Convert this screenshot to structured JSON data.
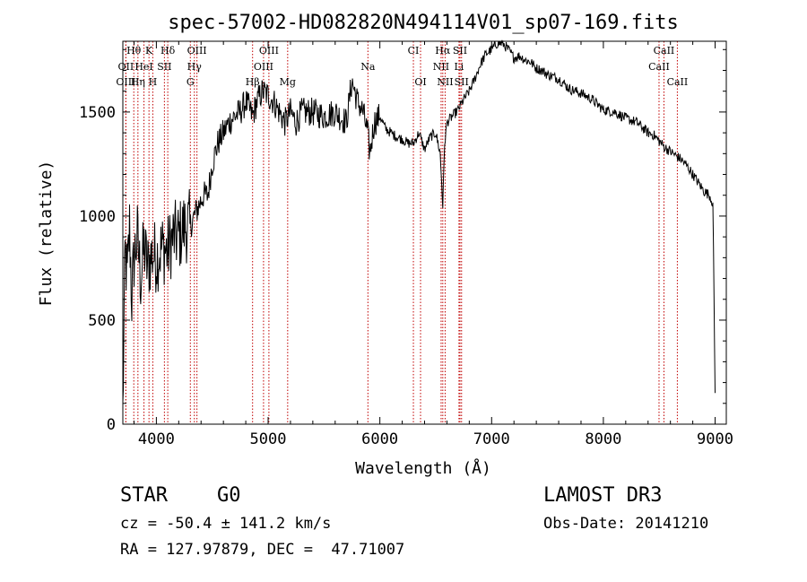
{
  "chart_data": {
    "type": "line",
    "title": "spec-57002-HD082820N494114V01_sp07-169.fits",
    "xlabel": "Wavelength (Å)",
    "ylabel": "Flux (relative)",
    "xlim": [
      3700,
      9100
    ],
    "ylim": [
      0,
      1840
    ],
    "x_ticks": [
      4000,
      5000,
      6000,
      7000,
      8000,
      9000
    ],
    "y_ticks": [
      0,
      500,
      1000,
      1500
    ],
    "series": [
      {
        "name": "spectrum",
        "x": [
          3700,
          3720,
          3740,
          3760,
          3780,
          3800,
          3830,
          3860,
          3890,
          3920,
          3950,
          3970,
          4000,
          4050,
          4100,
          4150,
          4200,
          4250,
          4300,
          4340,
          4380,
          4420,
          4460,
          4500,
          4550,
          4600,
          4650,
          4700,
          4750,
          4800,
          4861,
          4900,
          4950,
          5000,
          5050,
          5100,
          5150,
          5200,
          5250,
          5300,
          5400,
          5500,
          5600,
          5700,
          5750,
          5800,
          5850,
          5890,
          5910,
          5950,
          6000,
          6050,
          6100,
          6150,
          6200,
          6250,
          6300,
          6350,
          6400,
          6450,
          6500,
          6540,
          6563,
          6580,
          6600,
          6650,
          6700,
          6750,
          6800,
          6850,
          6900,
          6950,
          7000,
          7050,
          7100,
          7150,
          7200,
          7250,
          7300,
          7350,
          7400,
          7450,
          7500,
          7600,
          7700,
          7800,
          7900,
          8000,
          8100,
          8200,
          8300,
          8400,
          8450,
          8500,
          8550,
          8600,
          8650,
          8700,
          8750,
          8800,
          8850,
          8900,
          8950,
          8980,
          9000
        ],
        "y": [
          50,
          820,
          700,
          950,
          600,
          800,
          900,
          700,
          850,
          750,
          800,
          820,
          800,
          850,
          830,
          900,
          900,
          950,
          950,
          1000,
          1050,
          1100,
          1100,
          1250,
          1350,
          1400,
          1450,
          1480,
          1500,
          1550,
          1480,
          1550,
          1600,
          1580,
          1550,
          1500,
          1450,
          1500,
          1450,
          1500,
          1500,
          1480,
          1500,
          1450,
          1650,
          1550,
          1500,
          1400,
          1300,
          1450,
          1480,
          1420,
          1400,
          1380,
          1370,
          1350,
          1350,
          1400,
          1320,
          1380,
          1400,
          1300,
          1050,
          1350,
          1450,
          1480,
          1510,
          1560,
          1600,
          1660,
          1730,
          1780,
          1800,
          1830,
          1830,
          1800,
          1760,
          1770,
          1750,
          1740,
          1710,
          1700,
          1680,
          1660,
          1610,
          1590,
          1560,
          1510,
          1500,
          1470,
          1450,
          1400,
          1390,
          1360,
          1330,
          1310,
          1290,
          1270,
          1240,
          1200,
          1160,
          1120,
          1100,
          1060,
          150
        ]
      }
    ],
    "lines_top": [
      {
        "label": "Hθ",
        "x": 3798
      },
      {
        "label": "K",
        "x": 3934
      },
      {
        "label": "Hδ",
        "x": 4102
      },
      {
        "label": "OIII",
        "x": 4363
      },
      {
        "label": "OIII",
        "x": 5007
      },
      {
        "label": "CI",
        "x": 6300
      },
      {
        "label": "Hα",
        "x": 6563
      },
      {
        "label": "SII",
        "x": 6717
      },
      {
        "label": "CaII",
        "x": 8542
      }
    ],
    "lines_mid": [
      {
        "label": "OII",
        "x": 3727
      },
      {
        "label": "HeI",
        "x": 3889
      },
      {
        "label": "SII",
        "x": 4072
      },
      {
        "label": "Hγ",
        "x": 4340
      },
      {
        "label": "OIII",
        "x": 4959
      },
      {
        "label": "Na",
        "x": 5893
      },
      {
        "label": "NII",
        "x": 6548
      },
      {
        "label": "Li",
        "x": 6708
      },
      {
        "label": "CaII",
        "x": 8498
      }
    ],
    "lines_low": [
      {
        "label": "OIII",
        "x": 3727
      },
      {
        "label": "Hη",
        "x": 3835
      },
      {
        "label": "H",
        "x": 3968
      },
      {
        "label": "G",
        "x": 4304
      },
      {
        "label": "Hβ",
        "x": 4861
      },
      {
        "label": "Mg",
        "x": 5175
      },
      {
        "label": "OI",
        "x": 6364
      },
      {
        "label": "NII",
        "x": 6584
      },
      {
        "label": "SII",
        "x": 6731
      },
      {
        "label": "CaII",
        "x": 8662
      }
    ]
  },
  "info": {
    "object_class": "STAR",
    "subclass": "G0",
    "survey": "LAMOST DR3",
    "cz": "cz = -50.4 ± 141.2 km/s",
    "obs_date": "Obs-Date: 20141210",
    "coords": "RA = 127.97879, DEC =  47.71007"
  },
  "colors": {
    "line_marker": "#c00000",
    "spectrum": "#000000"
  }
}
